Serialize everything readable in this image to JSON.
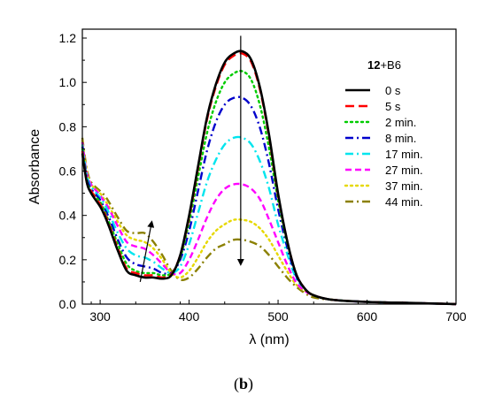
{
  "chart_data": {
    "type": "line",
    "xlabel": "λ (nm)",
    "ylabel": "Absorbance",
    "xlim": [
      280,
      700
    ],
    "ylim": [
      0,
      1.24
    ],
    "xticks": [
      300,
      400,
      500,
      600,
      700
    ],
    "yticks": [
      0.0,
      0.2,
      0.4,
      0.6,
      0.8,
      1.0,
      1.2
    ],
    "grid": false,
    "legend_position": "right",
    "sample_label": {
      "bold": "12",
      "rest": "+B6"
    },
    "caption": {
      "open": "(",
      "bold": "b",
      "close": ")"
    },
    "series": [
      {
        "name": "0 s",
        "color": "#000000",
        "dash": "solid",
        "points": [
          [
            280,
            0.68
          ],
          [
            285,
            0.55
          ],
          [
            290,
            0.5
          ],
          [
            300,
            0.44
          ],
          [
            305,
            0.4
          ],
          [
            310,
            0.35
          ],
          [
            320,
            0.24
          ],
          [
            330,
            0.15
          ],
          [
            340,
            0.13
          ],
          [
            350,
            0.12
          ],
          [
            360,
            0.12
          ],
          [
            370,
            0.115
          ],
          [
            380,
            0.13
          ],
          [
            390,
            0.22
          ],
          [
            400,
            0.4
          ],
          [
            410,
            0.62
          ],
          [
            420,
            0.84
          ],
          [
            430,
            0.99
          ],
          [
            440,
            1.09
          ],
          [
            450,
            1.13
          ],
          [
            460,
            1.14
          ],
          [
            470,
            1.1
          ],
          [
            480,
            0.97
          ],
          [
            490,
            0.76
          ],
          [
            500,
            0.5
          ],
          [
            510,
            0.29
          ],
          [
            520,
            0.14
          ],
          [
            530,
            0.07
          ],
          [
            540,
            0.04
          ],
          [
            560,
            0.02
          ],
          [
            600,
            0.01
          ],
          [
            650,
            0.005
          ],
          [
            700,
            0.0
          ]
        ]
      },
      {
        "name": "5 s",
        "color": "#ff0000",
        "dash": "long",
        "points": [
          [
            280,
            0.69
          ],
          [
            285,
            0.55
          ],
          [
            290,
            0.51
          ],
          [
            300,
            0.45
          ],
          [
            305,
            0.41
          ],
          [
            310,
            0.36
          ],
          [
            320,
            0.25
          ],
          [
            330,
            0.16
          ],
          [
            340,
            0.14
          ],
          [
            350,
            0.13
          ],
          [
            360,
            0.13
          ],
          [
            370,
            0.12
          ],
          [
            380,
            0.135
          ],
          [
            390,
            0.22
          ],
          [
            400,
            0.39
          ],
          [
            410,
            0.61
          ],
          [
            420,
            0.83
          ],
          [
            430,
            0.98
          ],
          [
            440,
            1.08
          ],
          [
            450,
            1.12
          ],
          [
            460,
            1.13
          ],
          [
            470,
            1.09
          ],
          [
            480,
            0.96
          ],
          [
            490,
            0.75
          ],
          [
            500,
            0.49
          ],
          [
            510,
            0.29
          ],
          [
            520,
            0.14
          ],
          [
            530,
            0.07
          ],
          [
            540,
            0.04
          ],
          [
            560,
            0.02
          ],
          [
            600,
            0.01
          ],
          [
            650,
            0.005
          ],
          [
            700,
            0.0
          ]
        ]
      },
      {
        "name": "2 min.",
        "color": "#00cc00",
        "dash": "dot",
        "points": [
          [
            280,
            0.7
          ],
          [
            285,
            0.56
          ],
          [
            290,
            0.51
          ],
          [
            300,
            0.46
          ],
          [
            305,
            0.42
          ],
          [
            310,
            0.37
          ],
          [
            320,
            0.27
          ],
          [
            330,
            0.18
          ],
          [
            340,
            0.15
          ],
          [
            350,
            0.14
          ],
          [
            360,
            0.14
          ],
          [
            370,
            0.13
          ],
          [
            380,
            0.14
          ],
          [
            390,
            0.21
          ],
          [
            400,
            0.37
          ],
          [
            410,
            0.57
          ],
          [
            420,
            0.77
          ],
          [
            430,
            0.91
          ],
          [
            440,
            1.0
          ],
          [
            450,
            1.04
          ],
          [
            460,
            1.05
          ],
          [
            470,
            1.01
          ],
          [
            480,
            0.89
          ],
          [
            490,
            0.7
          ],
          [
            500,
            0.47
          ],
          [
            510,
            0.28
          ],
          [
            520,
            0.14
          ],
          [
            530,
            0.07
          ],
          [
            540,
            0.04
          ],
          [
            560,
            0.02
          ],
          [
            600,
            0.01
          ],
          [
            650,
            0.005
          ],
          [
            700,
            0.0
          ]
        ]
      },
      {
        "name": "8 min.",
        "color": "#0000cc",
        "dash": "dashdot",
        "points": [
          [
            280,
            0.71
          ],
          [
            285,
            0.57
          ],
          [
            290,
            0.52
          ],
          [
            300,
            0.47
          ],
          [
            305,
            0.43
          ],
          [
            310,
            0.39
          ],
          [
            320,
            0.29
          ],
          [
            330,
            0.21
          ],
          [
            340,
            0.18
          ],
          [
            350,
            0.17
          ],
          [
            360,
            0.16
          ],
          [
            370,
            0.14
          ],
          [
            380,
            0.14
          ],
          [
            390,
            0.2
          ],
          [
            400,
            0.33
          ],
          [
            410,
            0.51
          ],
          [
            420,
            0.69
          ],
          [
            430,
            0.82
          ],
          [
            440,
            0.9
          ],
          [
            450,
            0.93
          ],
          [
            460,
            0.93
          ],
          [
            470,
            0.89
          ],
          [
            480,
            0.79
          ],
          [
            490,
            0.63
          ],
          [
            500,
            0.43
          ],
          [
            510,
            0.26
          ],
          [
            520,
            0.13
          ],
          [
            530,
            0.07
          ],
          [
            540,
            0.04
          ],
          [
            560,
            0.02
          ],
          [
            600,
            0.01
          ],
          [
            650,
            0.005
          ],
          [
            700,
            0.0
          ]
        ]
      },
      {
        "name": "17 min.",
        "color": "#00e5ee",
        "dash": "dashdot",
        "points": [
          [
            280,
            0.72
          ],
          [
            285,
            0.58
          ],
          [
            290,
            0.53
          ],
          [
            300,
            0.48
          ],
          [
            305,
            0.45
          ],
          [
            310,
            0.41
          ],
          [
            320,
            0.32
          ],
          [
            330,
            0.25
          ],
          [
            340,
            0.22
          ],
          [
            350,
            0.21
          ],
          [
            360,
            0.19
          ],
          [
            370,
            0.16
          ],
          [
            380,
            0.14
          ],
          [
            390,
            0.17
          ],
          [
            400,
            0.27
          ],
          [
            410,
            0.41
          ],
          [
            420,
            0.55
          ],
          [
            430,
            0.65
          ],
          [
            440,
            0.72
          ],
          [
            450,
            0.75
          ],
          [
            460,
            0.75
          ],
          [
            470,
            0.72
          ],
          [
            480,
            0.64
          ],
          [
            490,
            0.52
          ],
          [
            500,
            0.36
          ],
          [
            510,
            0.23
          ],
          [
            520,
            0.12
          ],
          [
            530,
            0.07
          ],
          [
            540,
            0.04
          ],
          [
            560,
            0.02
          ],
          [
            600,
            0.01
          ],
          [
            650,
            0.005
          ],
          [
            700,
            0.0
          ]
        ]
      },
      {
        "name": "27 min.",
        "color": "#ff00ff",
        "dash": "medium",
        "points": [
          [
            280,
            0.73
          ],
          [
            285,
            0.59
          ],
          [
            290,
            0.54
          ],
          [
            300,
            0.49
          ],
          [
            305,
            0.46
          ],
          [
            310,
            0.43
          ],
          [
            320,
            0.35
          ],
          [
            330,
            0.28
          ],
          [
            340,
            0.26
          ],
          [
            350,
            0.25
          ],
          [
            360,
            0.22
          ],
          [
            370,
            0.18
          ],
          [
            380,
            0.14
          ],
          [
            390,
            0.14
          ],
          [
            400,
            0.2
          ],
          [
            410,
            0.29
          ],
          [
            420,
            0.39
          ],
          [
            430,
            0.47
          ],
          [
            440,
            0.52
          ],
          [
            450,
            0.54
          ],
          [
            460,
            0.54
          ],
          [
            470,
            0.52
          ],
          [
            480,
            0.47
          ],
          [
            490,
            0.38
          ],
          [
            500,
            0.28
          ],
          [
            510,
            0.18
          ],
          [
            520,
            0.1
          ],
          [
            530,
            0.06
          ],
          [
            540,
            0.04
          ],
          [
            560,
            0.02
          ],
          [
            600,
            0.01
          ],
          [
            650,
            0.005
          ],
          [
            700,
            0.0
          ]
        ]
      },
      {
        "name": "37 min.",
        "color": "#e6d800",
        "dash": "dot",
        "points": [
          [
            280,
            0.74
          ],
          [
            285,
            0.6
          ],
          [
            290,
            0.54
          ],
          [
            300,
            0.5
          ],
          [
            305,
            0.47
          ],
          [
            310,
            0.44
          ],
          [
            320,
            0.37
          ],
          [
            330,
            0.31
          ],
          [
            340,
            0.29
          ],
          [
            350,
            0.28
          ],
          [
            360,
            0.25
          ],
          [
            370,
            0.2
          ],
          [
            380,
            0.14
          ],
          [
            390,
            0.12
          ],
          [
            400,
            0.15
          ],
          [
            410,
            0.21
          ],
          [
            420,
            0.28
          ],
          [
            430,
            0.33
          ],
          [
            440,
            0.36
          ],
          [
            450,
            0.38
          ],
          [
            460,
            0.38
          ],
          [
            470,
            0.37
          ],
          [
            480,
            0.34
          ],
          [
            490,
            0.29
          ],
          [
            500,
            0.22
          ],
          [
            510,
            0.15
          ],
          [
            520,
            0.09
          ],
          [
            530,
            0.06
          ],
          [
            540,
            0.04
          ],
          [
            560,
            0.02
          ],
          [
            600,
            0.01
          ],
          [
            650,
            0.005
          ],
          [
            700,
            0.0
          ]
        ]
      },
      {
        "name": "44 min.",
        "color": "#8b8000",
        "dash": "dashdot",
        "points": [
          [
            280,
            0.75
          ],
          [
            285,
            0.61
          ],
          [
            290,
            0.55
          ],
          [
            300,
            0.51
          ],
          [
            305,
            0.49
          ],
          [
            310,
            0.46
          ],
          [
            320,
            0.39
          ],
          [
            330,
            0.33
          ],
          [
            340,
            0.32
          ],
          [
            350,
            0.32
          ],
          [
            360,
            0.28
          ],
          [
            370,
            0.22
          ],
          [
            380,
            0.15
          ],
          [
            390,
            0.11
          ],
          [
            400,
            0.12
          ],
          [
            410,
            0.16
          ],
          [
            420,
            0.21
          ],
          [
            430,
            0.25
          ],
          [
            440,
            0.27
          ],
          [
            450,
            0.29
          ],
          [
            460,
            0.29
          ],
          [
            470,
            0.28
          ],
          [
            480,
            0.26
          ],
          [
            490,
            0.22
          ],
          [
            500,
            0.17
          ],
          [
            510,
            0.12
          ],
          [
            520,
            0.08
          ],
          [
            530,
            0.05
          ],
          [
            540,
            0.03
          ],
          [
            560,
            0.02
          ],
          [
            600,
            0.01
          ],
          [
            650,
            0.005
          ],
          [
            700,
            0.0
          ]
        ]
      }
    ],
    "annotations": [
      {
        "type": "arrow",
        "direction": "up",
        "from": [
          345,
          0.1
        ],
        "to": [
          358,
          0.37
        ]
      },
      {
        "type": "arrow",
        "direction": "down",
        "from": [
          458,
          1.21
        ],
        "to": [
          458,
          0.18
        ]
      }
    ]
  }
}
